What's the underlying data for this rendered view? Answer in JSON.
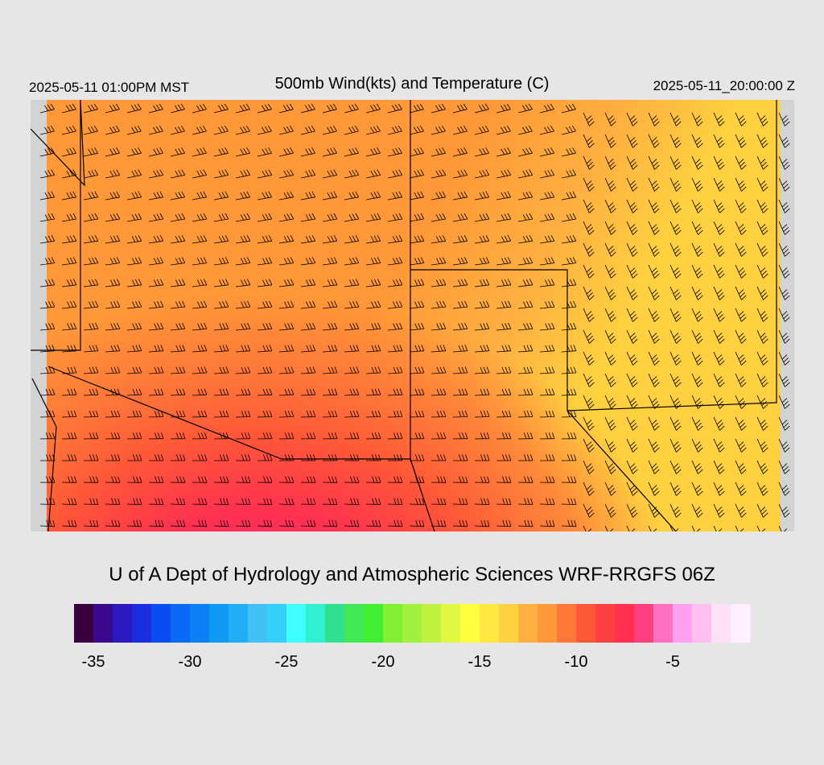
{
  "header": {
    "left": "2025-05-11 01:00PM MST",
    "title": "500mb Wind(kts) and Temperature (C)",
    "right": "2025-05-11_20:00:00 Z"
  },
  "credit": "U of A Dept of Hydrology and Atmospheric Sciences WRF-RRGFS 06Z",
  "colorbar": {
    "lim": [
      -36,
      -1
    ],
    "ticks": [
      -35,
      -30,
      -25,
      -20,
      -15,
      -10,
      -5
    ],
    "colors": [
      "#3a0040",
      "#3b0a8c",
      "#2a1ac0",
      "#1a2ee0",
      "#0a4cf0",
      "#0a6af5",
      "#0a82f5",
      "#109af5",
      "#20aef5",
      "#40c0f5",
      "#34d0fa",
      "#40ffff",
      "#30f0d0",
      "#30e090",
      "#40e858",
      "#40f030",
      "#80f030",
      "#a0f040",
      "#c0f040",
      "#e0f840",
      "#ffff40",
      "#ffe840",
      "#ffd040",
      "#ffb040",
      "#ff9838",
      "#ff7838",
      "#ff5838",
      "#ff4040",
      "#ff3050",
      "#ff4080",
      "#ff70c0",
      "#ffa0f0",
      "#ffc0f0",
      "#ffe0f8",
      "#fff0ff"
    ]
  }
}
